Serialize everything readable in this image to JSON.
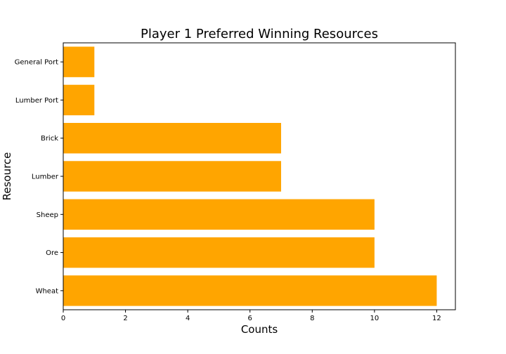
{
  "chart_data": {
    "type": "bar",
    "orientation": "horizontal",
    "title": "Player 1 Preferred Winning Resources",
    "xlabel": "Counts",
    "ylabel": "Resource",
    "categories": [
      "Wheat",
      "Ore",
      "Sheep",
      "Lumber",
      "Brick",
      "Lumber Port",
      "General Port"
    ],
    "values": [
      12,
      10,
      10,
      7,
      7,
      1,
      1
    ],
    "xlim": [
      0,
      12.6
    ],
    "xticks": [
      0,
      2,
      4,
      6,
      8,
      10,
      12
    ],
    "grid": false,
    "bar_color": "#FFA500"
  }
}
